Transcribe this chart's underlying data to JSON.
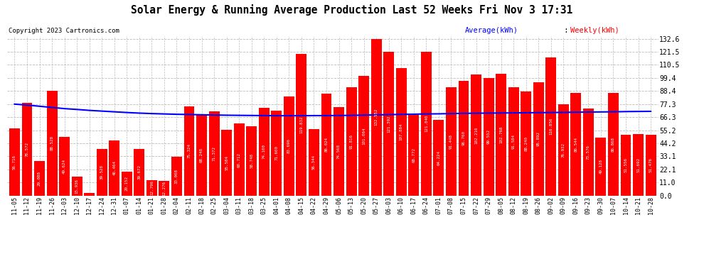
{
  "title": "Solar Energy & Running Average Production Last 52 Weeks Fri Nov 3 17:31",
  "copyright": "Copyright 2023 Cartronics.com",
  "legend_avg": "Average(kWh)",
  "legend_weekly": "Weekly(kWh)",
  "bar_color": "#ff0000",
  "avg_line_color": "#0000ff",
  "background_color": "#ffffff",
  "plot_bg_color": "#ffffff",
  "grid_color": "#bbbbbb",
  "yticks": [
    0.0,
    11.0,
    22.1,
    33.1,
    44.2,
    55.2,
    66.3,
    77.3,
    88.4,
    99.4,
    110.5,
    121.5,
    132.6
  ],
  "categories": [
    "11-05",
    "11-12",
    "11-19",
    "11-26",
    "12-03",
    "12-10",
    "12-17",
    "12-24",
    "12-31",
    "01-07",
    "01-14",
    "01-21",
    "01-28",
    "02-04",
    "02-11",
    "02-18",
    "02-25",
    "03-04",
    "03-11",
    "03-18",
    "03-25",
    "04-01",
    "04-08",
    "04-15",
    "04-22",
    "04-29",
    "05-06",
    "05-13",
    "05-20",
    "05-27",
    "06-03",
    "06-10",
    "06-17",
    "06-24",
    "07-01",
    "07-08",
    "07-15",
    "07-22",
    "07-29",
    "08-05",
    "08-12",
    "08-19",
    "08-26",
    "09-02",
    "09-09",
    "09-16",
    "09-23",
    "09-30",
    "10-07",
    "10-14",
    "10-21",
    "10-28"
  ],
  "values": [
    56.716,
    78.572,
    29.088,
    88.528,
    49.624,
    15.936,
    1.928,
    39.528,
    46.464,
    20.152,
    39.672,
    12.796,
    12.276,
    33.008,
    75.324,
    68.248,
    71.372,
    55.584,
    60.712,
    58.748,
    74.1,
    71.6,
    83.696,
    119.832,
    56.344,
    86.024,
    74.568,
    91.816,
    101.064,
    132.552,
    121.392,
    107.884,
    68.772,
    121.84,
    64.224,
    91.448,
    96.76,
    102.216,
    99.552,
    102.768,
    91.584,
    88.24,
    95.892,
    116.856,
    76.932,
    86.544,
    73.576,
    49.128,
    86.868,
    51.556,
    51.692,
    51.476
  ],
  "avg_values": [
    77.3,
    76.5,
    75.5,
    74.5,
    73.5,
    72.8,
    72.0,
    71.4,
    70.8,
    70.2,
    69.7,
    69.3,
    69.0,
    68.7,
    68.5,
    68.3,
    68.1,
    67.9,
    67.8,
    67.7,
    67.6,
    67.5,
    67.5,
    67.5,
    67.6,
    67.6,
    67.7,
    67.8,
    68.0,
    68.2,
    68.4,
    68.6,
    68.8,
    69.0,
    69.1,
    69.3,
    69.5,
    69.6,
    69.7,
    69.8,
    69.9,
    70.0,
    70.1,
    70.2,
    70.3,
    70.5,
    70.6,
    70.7,
    70.8,
    71.0,
    71.1,
    71.2
  ],
  "ylim_max": 135.0,
  "bar_width": 0.85,
  "label_fontsize": 4.2,
  "tick_fontsize": 7.0,
  "xtick_fontsize": 6.0
}
